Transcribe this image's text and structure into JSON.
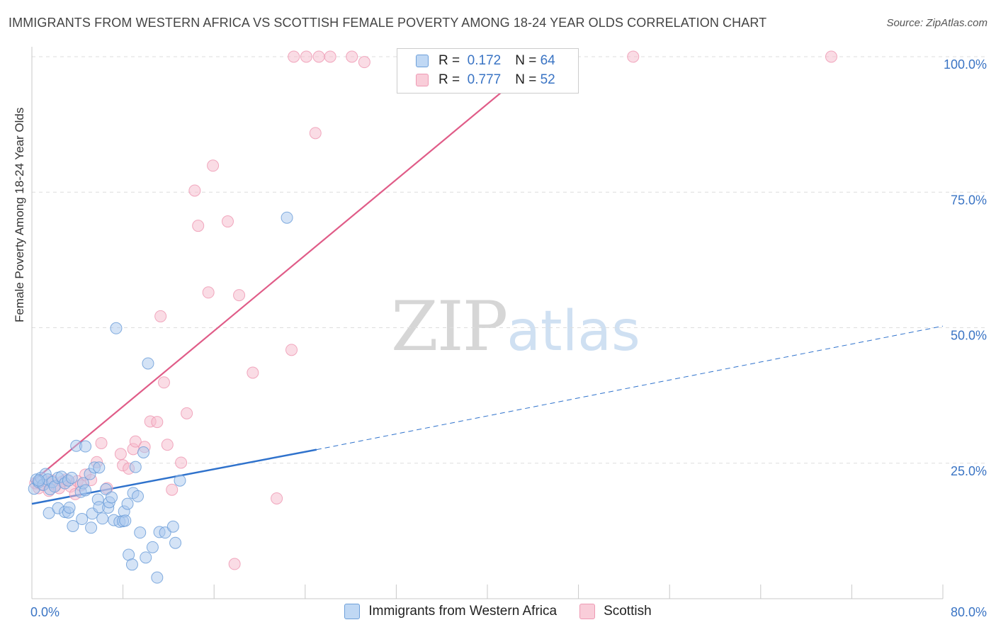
{
  "header": {
    "title": "IMMIGRANTS FROM WESTERN AFRICA VS SCOTTISH FEMALE POVERTY AMONG 18-24 YEAR OLDS CORRELATION CHART",
    "source": "Source: ZipAtlas.com"
  },
  "watermark": {
    "zip": "ZIP",
    "atlas": "atlas"
  },
  "legend": {
    "r_label": "R =",
    "n_label": "N =",
    "rows": [
      {
        "r": "0.172",
        "n": "64"
      },
      {
        "r": "0.777",
        "n": "52"
      }
    ]
  },
  "colors": {
    "blue_fill": "#a9c8ee",
    "blue_stroke": "#6d9fd9",
    "blue_line": "#2f72cc",
    "pink_fill": "#f6b9cc",
    "pink_stroke": "#ee9ab4",
    "pink_line": "#e05c88",
    "axis_text": "#3a74c4",
    "grid": "#dddddd"
  },
  "chart_data": {
    "type": "scatter",
    "title": "IMMIGRANTS FROM WESTERN AFRICA VS SCOTTISH FEMALE POVERTY AMONG 18-24 YEAR OLDS CORRELATION CHART",
    "xlabel": "",
    "ylabel": "Female Poverty Among 18-24 Year Olds",
    "xlim": [
      0,
      80
    ],
    "ylim": [
      0,
      100
    ],
    "x_tick_labels": [
      "0.0%",
      "80.0%"
    ],
    "y_tick_labels": [
      "25.0%",
      "50.0%",
      "75.0%",
      "100.0%"
    ],
    "y_ticks": [
      25,
      50,
      75,
      100
    ],
    "grid": true,
    "legend_position": "top-center",
    "series": [
      {
        "name": "Immigrants from Western Africa",
        "color": "#a9c8ee",
        "r": 0.172,
        "n": 64,
        "trend": {
          "x0": 0,
          "y0": 17.5,
          "x1": 25,
          "y1": 27.5,
          "extend_to_x": 80,
          "extend_y": 50.3
        },
        "points": [
          [
            0.2,
            20.3
          ],
          [
            0.4,
            22.0
          ],
          [
            0.6,
            21.5
          ],
          [
            0.8,
            22.3
          ],
          [
            1.0,
            21.0
          ],
          [
            1.2,
            23.0
          ],
          [
            1.4,
            22.0
          ],
          [
            1.6,
            20.2
          ],
          [
            1.8,
            21.5
          ],
          [
            2.0,
            20.7
          ],
          [
            2.3,
            22.3
          ],
          [
            2.6,
            22.5
          ],
          [
            2.9,
            21.3
          ],
          [
            3.2,
            21.8
          ],
          [
            3.5,
            22.3
          ],
          [
            1.5,
            15.8
          ],
          [
            2.3,
            16.7
          ],
          [
            2.9,
            16.0
          ],
          [
            3.2,
            15.9
          ],
          [
            3.6,
            13.4
          ],
          [
            4.3,
            19.7
          ],
          [
            4.4,
            14.7
          ],
          [
            4.5,
            21.3
          ],
          [
            4.7,
            20.0
          ],
          [
            5.1,
            23.0
          ],
          [
            5.2,
            13.1
          ],
          [
            5.3,
            15.7
          ],
          [
            5.5,
            24.2
          ],
          [
            5.8,
            18.3
          ],
          [
            5.9,
            16.9
          ],
          [
            6.2,
            14.8
          ],
          [
            6.5,
            20.2
          ],
          [
            6.7,
            16.8
          ],
          [
            6.8,
            17.8
          ],
          [
            7.0,
            18.7
          ],
          [
            7.2,
            14.5
          ],
          [
            7.4,
            49.9
          ],
          [
            7.7,
            14.2
          ],
          [
            8.0,
            14.3
          ],
          [
            8.1,
            16.1
          ],
          [
            8.2,
            14.4
          ],
          [
            8.4,
            17.5
          ],
          [
            8.5,
            8.1
          ],
          [
            8.8,
            6.3
          ],
          [
            8.9,
            19.5
          ],
          [
            9.1,
            24.3
          ],
          [
            9.3,
            18.9
          ],
          [
            9.5,
            12.2
          ],
          [
            9.8,
            27.0
          ],
          [
            10.0,
            7.6
          ],
          [
            10.2,
            43.4
          ],
          [
            10.6,
            9.5
          ],
          [
            11.0,
            3.9
          ],
          [
            11.2,
            12.3
          ],
          [
            11.7,
            12.2
          ],
          [
            12.4,
            13.3
          ],
          [
            12.6,
            10.3
          ],
          [
            13.0,
            21.8
          ],
          [
            22.4,
            70.3
          ],
          [
            3.9,
            28.2
          ],
          [
            5.9,
            24.2
          ],
          [
            4.7,
            28.1
          ],
          [
            0.6,
            21.8
          ],
          [
            3.3,
            16.8
          ]
        ]
      },
      {
        "name": "Scottish",
        "color": "#f6b9cc",
        "r": 0.777,
        "n": 52,
        "trend": {
          "x0": 0,
          "y0": 21.5,
          "x1": 45,
          "y1": 100
        },
        "points": [
          [
            0.3,
            21.3
          ],
          [
            0.6,
            20.4
          ],
          [
            0.9,
            21.0
          ],
          [
            1.2,
            21.7
          ],
          [
            1.5,
            19.9
          ],
          [
            1.8,
            21.8
          ],
          [
            2.1,
            20.9
          ],
          [
            2.4,
            20.4
          ],
          [
            2.7,
            21.6
          ],
          [
            3.0,
            22.0
          ],
          [
            3.4,
            20.7
          ],
          [
            3.8,
            19.3
          ],
          [
            4.0,
            21.7
          ],
          [
            4.3,
            20.9
          ],
          [
            4.7,
            22.9
          ],
          [
            5.2,
            21.9
          ],
          [
            5.7,
            25.2
          ],
          [
            6.1,
            28.7
          ],
          [
            6.6,
            20.4
          ],
          [
            7.8,
            26.7
          ],
          [
            8.0,
            24.6
          ],
          [
            8.5,
            24.0
          ],
          [
            8.9,
            27.6
          ],
          [
            9.1,
            29.0
          ],
          [
            9.9,
            28.0
          ],
          [
            10.4,
            32.7
          ],
          [
            11.0,
            32.6
          ],
          [
            11.3,
            52.1
          ],
          [
            11.6,
            39.9
          ],
          [
            11.9,
            28.4
          ],
          [
            12.3,
            20.1
          ],
          [
            13.1,
            25.1
          ],
          [
            13.6,
            34.2
          ],
          [
            14.3,
            75.3
          ],
          [
            14.6,
            68.8
          ],
          [
            15.5,
            56.5
          ],
          [
            15.9,
            79.9
          ],
          [
            17.2,
            69.6
          ],
          [
            17.8,
            6.4
          ],
          [
            18.2,
            56.0
          ],
          [
            19.4,
            41.7
          ],
          [
            21.5,
            18.5
          ],
          [
            22.8,
            45.9
          ],
          [
            23.0,
            100.0
          ],
          [
            24.1,
            100.0
          ],
          [
            24.9,
            85.9
          ],
          [
            25.2,
            100.0
          ],
          [
            26.2,
            100.0
          ],
          [
            28.1,
            100.0
          ],
          [
            29.2,
            99.0
          ],
          [
            52.8,
            100.0
          ],
          [
            70.2,
            100.0
          ]
        ]
      }
    ]
  },
  "axes": {
    "y_label": "Female Poverty Among 18-24 Year Olds",
    "x_min_label": "0.0%",
    "x_max_label": "80.0%"
  },
  "bottom_legend": {
    "items": [
      "Immigrants from Western Africa",
      "Scottish"
    ]
  }
}
